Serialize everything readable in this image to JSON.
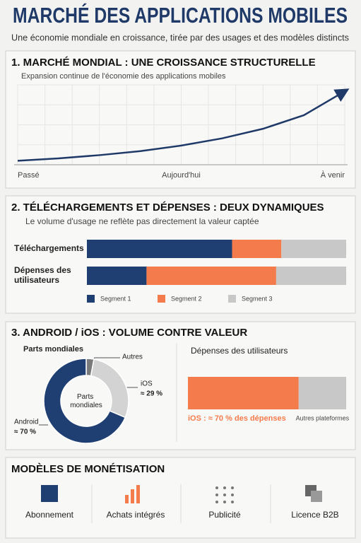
{
  "header": {
    "title": "MARCHÉ DES APPLICATIONS MOBILES",
    "subtitle": "Une économie mondiale en croissance, tirée par des usages et des modèles distincts"
  },
  "chart_data": [
    {
      "type": "line",
      "title": "1. MARCHÉ MONDIAL : UNE CROISSANCE STRUCTURELLE",
      "subtitle": "Expansion continue de l'économie des applications mobiles",
      "categories": [
        "Passé",
        null,
        null,
        null,
        "Aujourd'hui",
        null,
        null,
        null,
        "À venir"
      ],
      "values": [
        5,
        8,
        12,
        17,
        24,
        33,
        45,
        62,
        92
      ],
      "color": "#1f3a68",
      "ylim": [
        0,
        100
      ],
      "grid": true
    },
    {
      "type": "stacked-bar",
      "title": "2. TÉLÉCHARGEMENTS ET DÉPENSES : DEUX DYNAMIQUES",
      "subtitle": "Le volume d'usage ne reflète pas directement la valeur captée",
      "categories": [
        "Téléchargements",
        "Dépenses des utilisateurs"
      ],
      "xlim": [
        0,
        100
      ],
      "series": [
        {
          "name": "Segment 1",
          "color": "#1f3f73",
          "values": [
            56,
            23
          ]
        },
        {
          "name": "Segment 2",
          "color": "#f47c4c",
          "values": [
            19,
            50
          ]
        },
        {
          "name": "Segment 3",
          "color": "#c8c8c8",
          "values": [
            25,
            27
          ]
        }
      ]
    },
    {
      "type": "pie",
      "title": "Parts mondiales",
      "categories": [
        "Android",
        "iOS",
        "Autres"
      ],
      "values": [
        70,
        29,
        3
      ],
      "value_labels": [
        "≈ 70 %",
        "≈ 29 %",
        null
      ],
      "colors": [
        "#1f3f73",
        "#d3d3d3",
        "#7a7a7a"
      ]
    },
    {
      "type": "stacked-bar",
      "title": "Dépenses des utilisateurs",
      "categories": [
        "iOS : ≈ 70 % des dépenses",
        "Autres plateformes"
      ],
      "values": [
        70,
        30
      ],
      "colors": [
        "#f47c4c",
        "#c8c8c8"
      ],
      "xlim": [
        0,
        100
      ]
    }
  ],
  "section3": {
    "title": "3. ANDROID / iOS : VOLUME CONTRE VALEUR"
  },
  "monetization": {
    "title": "MODÈLES DE MONÉTISATION",
    "items": [
      "Abonnement",
      "Achats intégrés",
      "Publicité",
      "Licence B2B"
    ]
  }
}
